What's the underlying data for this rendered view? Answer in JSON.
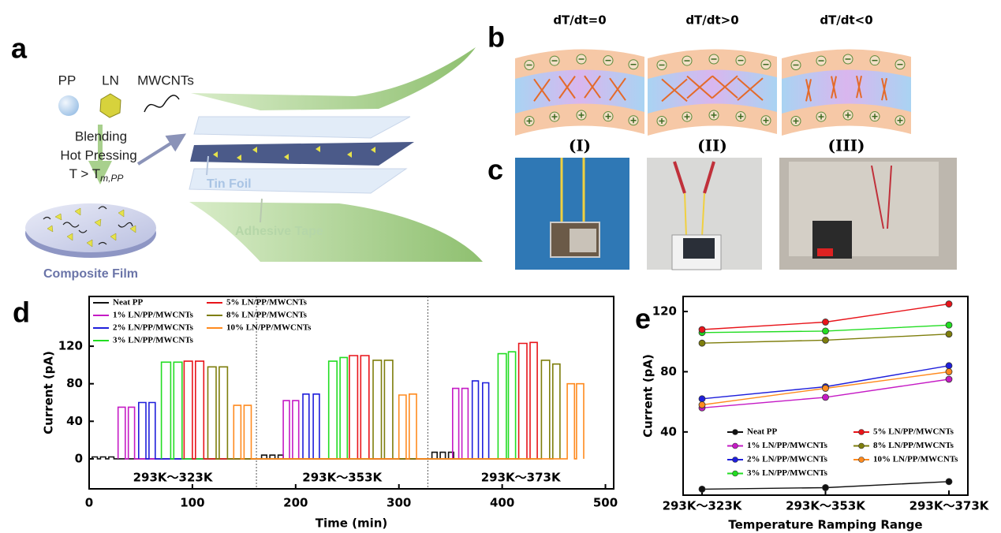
{
  "panels": {
    "a": {
      "label": "a",
      "pp": "PP",
      "ln": "LN",
      "mwcnts": "MWCNTs",
      "steps": [
        "Blending",
        "Hot Pressing"
      ],
      "condition": "T > T",
      "condition_sub": "m,PP",
      "composite": "Composite Film",
      "tin": "Tin Foil",
      "tape": "Adhesive Tape"
    },
    "b": {
      "label": "b",
      "titles": [
        "dT/dt=0",
        "dT/dt>0",
        "dT/dt<0"
      ],
      "cases": [
        "(I)",
        "(II)",
        "(III)"
      ]
    },
    "c": {
      "label": "c"
    },
    "d": {
      "label": "d"
    },
    "e": {
      "label": "e"
    }
  },
  "chart_data": [
    {
      "type": "line",
      "x_label": "Time (min)",
      "y_label": "Current (pA)",
      "xlim": [
        0,
        508
      ],
      "xticks": [
        0,
        100,
        200,
        300,
        400,
        500
      ],
      "ylim": [
        -32,
        173
      ],
      "yticks": [
        0,
        40,
        80,
        120
      ],
      "dividers": [
        162,
        328
      ],
      "annotations": [
        "293K～323K",
        "293K～353K",
        "293K～373K"
      ],
      "series": [
        {
          "name": "Neat PP",
          "color": "#111111",
          "x": [
            3,
            3,
            8,
            8,
            11,
            11,
            16,
            16,
            19,
            19,
            24,
            24,
            167,
            167,
            172,
            172,
            175,
            175,
            180,
            180,
            183,
            183,
            188,
            188,
            332,
            332,
            337,
            337,
            340,
            340,
            345,
            345,
            348,
            348,
            353,
            353
          ],
          "values": [
            0,
            2,
            2,
            0,
            0,
            2,
            2,
            0,
            0,
            2,
            2,
            0,
            0,
            4,
            4,
            0,
            0,
            4,
            4,
            0,
            0,
            4,
            4,
            0,
            0,
            7,
            7,
            0,
            0,
            7,
            7,
            0,
            0,
            7,
            7,
            0
          ]
        },
        {
          "name": "1% LN/PP/MWCNTs",
          "color": "#c51bc5",
          "x": [
            28,
            28,
            35,
            35,
            38,
            38,
            44,
            44,
            188,
            188,
            194,
            194,
            197,
            197,
            203,
            203,
            352,
            352,
            358,
            358,
            361,
            361,
            367,
            367
          ],
          "values": [
            0,
            55,
            55,
            0,
            0,
            55,
            55,
            0,
            0,
            62,
            62,
            0,
            0,
            62,
            62,
            0,
            0,
            75,
            75,
            0,
            0,
            75,
            75,
            0
          ]
        },
        {
          "name": "2% LN/PP/MWCNTs",
          "color": "#1f1fdb",
          "x": [
            48,
            48,
            55,
            55,
            58,
            58,
            64,
            64,
            207,
            207,
            213,
            213,
            217,
            217,
            223,
            223,
            371,
            371,
            377,
            377,
            381,
            381,
            387,
            387
          ],
          "values": [
            0,
            60,
            60,
            0,
            0,
            60,
            60,
            0,
            0,
            69,
            69,
            0,
            0,
            69,
            69,
            0,
            0,
            83,
            83,
            0,
            0,
            81,
            81,
            0
          ]
        },
        {
          "name": "3% LN/PP/MWCNTs",
          "color": "#22dd22",
          "x": [
            70,
            70,
            79,
            79,
            82,
            82,
            90,
            90,
            232,
            232,
            240,
            240,
            243,
            243,
            250,
            250,
            396,
            396,
            404,
            404,
            406,
            406,
            413,
            413
          ],
          "values": [
            0,
            103,
            103,
            0,
            0,
            103,
            103,
            0,
            0,
            104,
            104,
            0,
            0,
            108,
            108,
            0,
            0,
            112,
            112,
            0,
            0,
            114,
            114,
            0
          ]
        },
        {
          "name": "5% LN/PP/MWCNTs",
          "color": "#e8141a",
          "x": [
            92,
            92,
            100,
            100,
            103,
            103,
            111,
            111,
            252,
            252,
            260,
            260,
            263,
            263,
            271,
            271,
            416,
            416,
            424,
            424,
            427,
            427,
            434,
            434
          ],
          "values": [
            0,
            104,
            104,
            0,
            0,
            104,
            104,
            0,
            0,
            110,
            110,
            0,
            0,
            110,
            110,
            0,
            0,
            123,
            123,
            0,
            0,
            124,
            124,
            0
          ]
        },
        {
          "name": "8% LN/PP/MWCNTs",
          "color": "#7e7e0c",
          "x": [
            115,
            115,
            123,
            123,
            126,
            126,
            134,
            134,
            275,
            275,
            283,
            283,
            286,
            286,
            294,
            294,
            438,
            438,
            446,
            446,
            449,
            449,
            456,
            456
          ],
          "values": [
            0,
            98,
            98,
            0,
            0,
            98,
            98,
            0,
            0,
            105,
            105,
            0,
            0,
            105,
            105,
            0,
            0,
            105,
            105,
            0,
            0,
            101,
            101,
            0
          ]
        },
        {
          "name": "10% LN/PP/MWCNTs",
          "color": "#ff8a1e",
          "x": [
            140,
            140,
            147,
            147,
            150,
            150,
            157,
            157,
            300,
            300,
            307,
            307,
            310,
            310,
            317,
            317,
            463,
            463,
            470,
            470,
            472,
            472,
            479,
            479
          ],
          "values": [
            0,
            57,
            57,
            0,
            0,
            57,
            57,
            0,
            0,
            68,
            68,
            0,
            0,
            69,
            69,
            0,
            0,
            80,
            80,
            0,
            0,
            80,
            80,
            0
          ]
        }
      ]
    },
    {
      "type": "line",
      "x_label": "Temperature Ramping Range",
      "y_label": "Current (pA)",
      "categories": [
        "293K～323K",
        "293K～353K",
        "293K～373K"
      ],
      "ylim": [
        -2,
        130
      ],
      "yticks": [
        40,
        80,
        120
      ],
      "series": [
        {
          "name": "Neat PP",
          "color": "#111111",
          "values": [
            2,
            3,
            7
          ]
        },
        {
          "name": "1% LN/PP/MWCNTs",
          "color": "#c51bc5",
          "values": [
            56,
            63,
            75
          ]
        },
        {
          "name": "2% LN/PP/MWCNTs",
          "color": "#1f1fdb",
          "values": [
            62,
            70,
            84
          ]
        },
        {
          "name": "3% LN/PP/MWCNTs",
          "color": "#22dd22",
          "values": [
            106,
            107,
            111
          ]
        },
        {
          "name": "5% LN/PP/MWCNTs",
          "color": "#e8141a",
          "values": [
            108,
            113,
            125
          ]
        },
        {
          "name": "8% LN/PP/MWCNTs",
          "color": "#7e7e0c",
          "values": [
            99,
            101,
            105
          ]
        },
        {
          "name": "10% LN/PP/MWCNTs",
          "color": "#ff8a1e",
          "values": [
            58,
            69,
            80
          ]
        }
      ]
    }
  ]
}
